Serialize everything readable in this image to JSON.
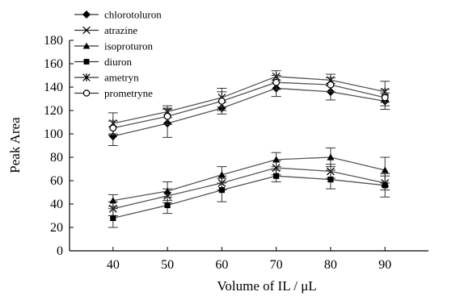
{
  "chart_data": {
    "type": "line",
    "xlabel": "Volume of IL / μL",
    "ylabel": "Peak Area",
    "x": [
      40,
      50,
      60,
      70,
      80,
      90
    ],
    "xlim": [
      32,
      98
    ],
    "ylim": [
      0,
      180
    ],
    "yticks": [
      0,
      20,
      40,
      60,
      80,
      100,
      120,
      140,
      160,
      180
    ],
    "grid": false,
    "legend_position": "top-left",
    "series": [
      {
        "name": "chlorotoluron",
        "marker": "diamond-filled",
        "values": [
          98,
          109,
          122,
          139,
          136,
          128
        ],
        "errors": [
          8,
          12,
          5,
          7,
          7,
          7
        ]
      },
      {
        "name": "atrazine",
        "marker": "x",
        "values": [
          36,
          47,
          58,
          71,
          68,
          58
        ],
        "errors": [
          6,
          6,
          6,
          6,
          6,
          6
        ]
      },
      {
        "name": "isoproturon",
        "marker": "triangle-filled",
        "values": [
          43,
          51,
          65,
          78,
          80,
          69
        ],
        "errors": [
          5,
          8,
          7,
          6,
          8,
          11
        ]
      },
      {
        "name": "diuron",
        "marker": "square-filled",
        "values": [
          28,
          39,
          52,
          64,
          61,
          56
        ],
        "errors": [
          8,
          7,
          10,
          5,
          8,
          10
        ]
      },
      {
        "name": "ametryn",
        "marker": "asterisk",
        "values": [
          109,
          119,
          131,
          149,
          146,
          136
        ],
        "errors": [
          9,
          5,
          8,
          5,
          5,
          9
        ]
      },
      {
        "name": "prometryne",
        "marker": "circle-open",
        "values": [
          105,
          115,
          128,
          144,
          142,
          131
        ],
        "errors": [
          6,
          7,
          8,
          6,
          6,
          7
        ]
      }
    ]
  }
}
